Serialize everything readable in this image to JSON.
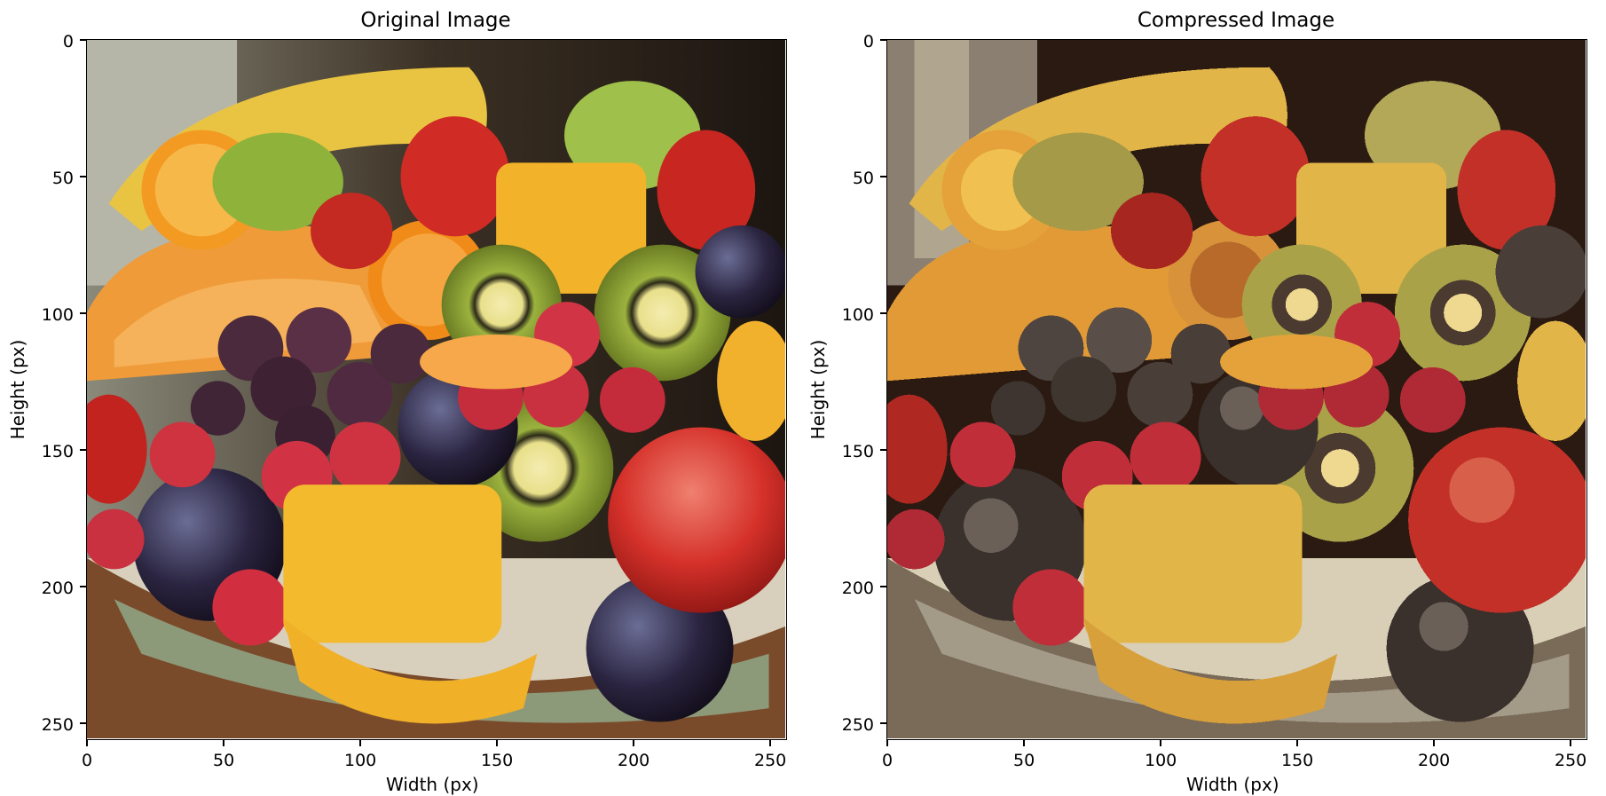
{
  "figure": {
    "panels": [
      {
        "title": "Original Image",
        "xlabel": "Width (px)",
        "ylabel": "Height (px)",
        "xticks": [
          "0",
          "50",
          "100",
          "150",
          "200",
          "250"
        ],
        "yticks": [
          "0",
          "50",
          "100",
          "150",
          "200",
          "250"
        ],
        "image_content": "fruit-bowl-photo"
      },
      {
        "title": "Compressed Image",
        "xlabel": "Width (px)",
        "ylabel": "Height (px)",
        "xticks": [
          "0",
          "50",
          "100",
          "150",
          "200",
          "250"
        ],
        "yticks": [
          "0",
          "50",
          "100",
          "150",
          "200",
          "250"
        ],
        "image_content": "fruit-bowl-color-quantized"
      }
    ]
  }
}
